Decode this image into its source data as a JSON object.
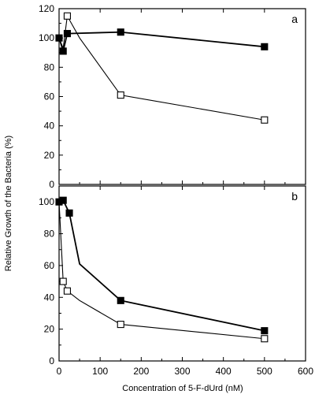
{
  "chart_data": {
    "type": "line",
    "xlabel": "Concentration of 5-F-dUrd (nM)",
    "ylabel": "Relative Growth of the Bacteria (%)",
    "x_ticks": [
      "0",
      "100",
      "200",
      "300",
      "400",
      "500",
      "600"
    ],
    "xlim": [
      0,
      600
    ],
    "grid": false,
    "panels": [
      {
        "label": "a",
        "ylim": [
          0,
          120
        ],
        "y_ticks": [
          "0",
          "20",
          "40",
          "60",
          "80",
          "100",
          "120"
        ],
        "series": [
          {
            "marker": "filled-square",
            "x": [
              0,
              10,
              20,
              150,
              500
            ],
            "y": [
              100,
              91,
              103,
              104,
              94
            ],
            "marked": [
              true,
              true,
              true,
              true,
              true
            ]
          },
          {
            "marker": "open-square",
            "x": [
              0,
              10,
              20,
              50,
              150,
              500
            ],
            "y": [
              100,
              93,
              115,
              100,
              61,
              44
            ],
            "marked": [
              false,
              false,
              true,
              false,
              true,
              true
            ]
          }
        ]
      },
      {
        "label": "b",
        "ylim": [
          0,
          110
        ],
        "y_ticks": [
          "0",
          "20",
          "40",
          "60",
          "80",
          "100"
        ],
        "series": [
          {
            "marker": "filled-square",
            "x": [
              0,
              10,
              25,
              50,
              150,
              500
            ],
            "y": [
              100,
              101,
              93,
              61,
              38,
              19
            ],
            "marked": [
              true,
              true,
              true,
              false,
              true,
              true
            ]
          },
          {
            "marker": "open-square",
            "x": [
              0,
              10,
              20,
              50,
              150,
              500
            ],
            "y": [
              100,
              50,
              44,
              38,
              23,
              14
            ],
            "marked": [
              false,
              true,
              true,
              false,
              true,
              true
            ]
          }
        ]
      }
    ]
  }
}
